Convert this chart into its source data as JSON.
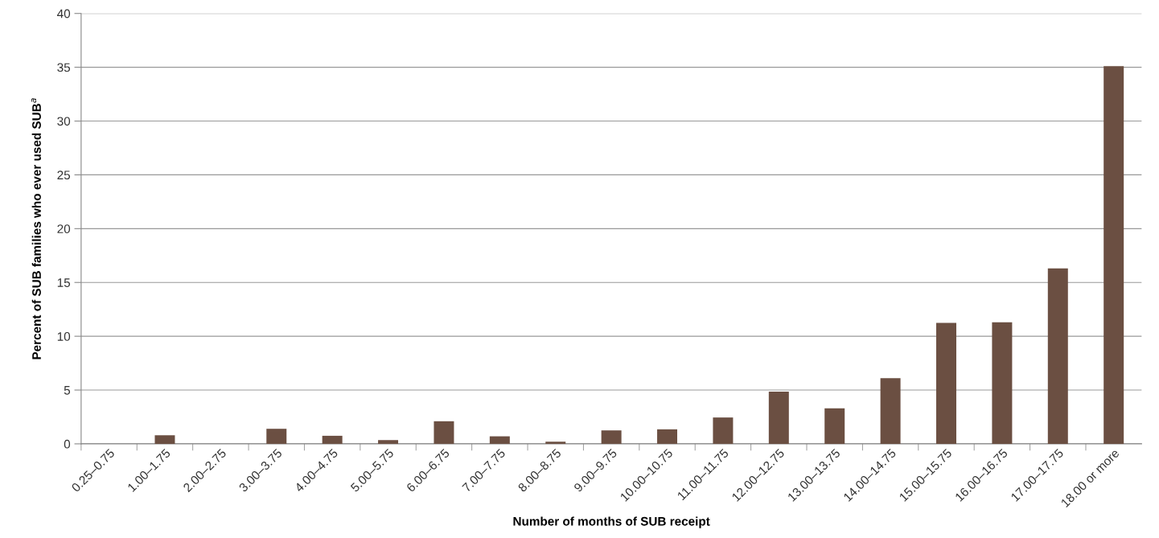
{
  "chart_data": {
    "type": "bar",
    "xlabel": "Number of months of SUB receipt",
    "ylabel": "Percent of SUB families who ever used SUB$^{a}$",
    "categories": [
      "0.25–0.75",
      "1.00–1.75",
      "2.00–2.75",
      "3.00–3.75",
      "4.00–4.75",
      "5.00–5.75",
      "6.00–6.75",
      "7.00–7.75",
      "8.00–8.75",
      "9.00–9.75",
      "10.00–10.75",
      "11.00–11.75",
      "12.00–12.75",
      "13.00–13.75",
      "14.00–14.75",
      "15.00–15.75",
      "16.00–16.75",
      "17.00–17.75",
      "18.00 or more"
    ],
    "values": [
      0,
      0.8,
      0,
      1.4,
      0.75,
      0.35,
      2.1,
      0.7,
      0.2,
      1.25,
      1.35,
      2.45,
      4.85,
      3.3,
      6.1,
      11.25,
      11.3,
      16.3,
      35.1
    ],
    "color": "#6b4f42",
    "ylim": [
      0,
      40
    ],
    "yticks": [
      0,
      5,
      10,
      15,
      20,
      25,
      30,
      35,
      40
    ],
    "grid": "y"
  }
}
